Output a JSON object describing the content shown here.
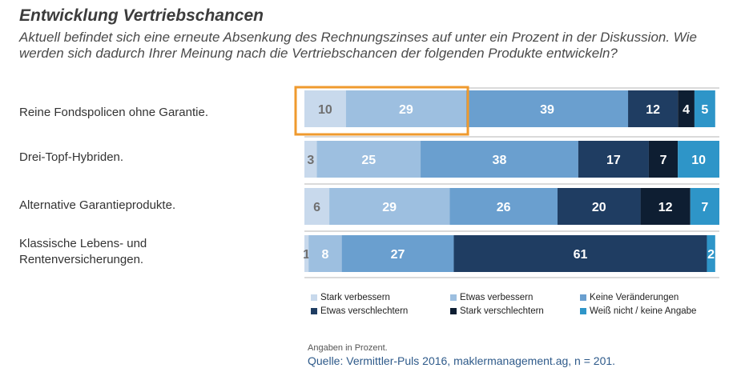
{
  "header": {
    "title": "Entwicklung Vertriebschancen",
    "subtitle": "Aktuell befindet sich eine erneute Absenkung des Rechnungszinses auf unter ein Prozent in der Diskussion. Wie werden sich dadurch Ihrer Meinung nach die Vertriebschancen der folgenden Produkte entwickeln?"
  },
  "chart_data": {
    "type": "bar",
    "orientation": "horizontal",
    "stacked": true,
    "categories": [
      "Reine Fondspolicen ohne Garantie.",
      "Drei-Topf-Hybriden.",
      "Alternative Garantieprodukte.",
      "Klassische Lebens- und Rentenversicherungen."
    ],
    "series": [
      {
        "name": "Stark verbessern",
        "color": "#c8d9ec",
        "label_color": "#707070",
        "values": [
          10,
          3,
          6,
          1
        ]
      },
      {
        "name": "Etwas verbessern",
        "color": "#9dbfe0",
        "label_color": "#ffffff",
        "values": [
          29,
          25,
          29,
          8
        ]
      },
      {
        "name": "Keine Veränderungen",
        "color": "#6a9fcf",
        "label_color": "#ffffff",
        "values": [
          39,
          38,
          26,
          27
        ]
      },
      {
        "name": "Etwas verschlechtern",
        "color": "#1f3d62",
        "label_color": "#ffffff",
        "values": [
          12,
          17,
          20,
          61
        ]
      },
      {
        "name": "Stark verschlechtern",
        "color": "#0e1e32",
        "label_color": "#ffffff",
        "values": [
          4,
          7,
          12,
          0
        ]
      },
      {
        "name": "Weiß nicht / keine Angabe",
        "color": "#2e95c8",
        "label_color": "#ffffff",
        "values": [
          5,
          10,
          7,
          2
        ]
      }
    ],
    "xlim": [
      0,
      100
    ],
    "highlight": {
      "category_index": 0,
      "series_indices": [
        0,
        1
      ],
      "color": "#ef9a2e"
    },
    "unit_note": "Angaben in Prozent.",
    "source": "Quelle: Vermittler-Puls 2016, maklermanagement.ag, n = 201."
  }
}
